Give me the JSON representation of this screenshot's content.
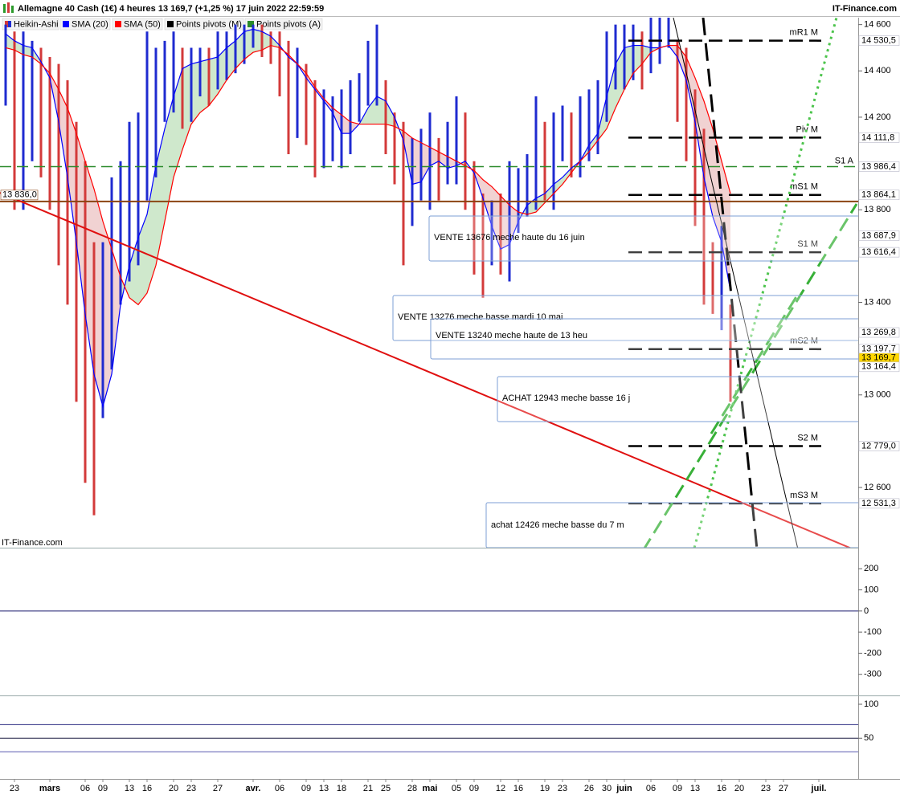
{
  "header": {
    "title": "Allemagne 40 Cash (1€) 4 heures 13 169,7 (+1,25 %) 17 juin 2022 22:59:59",
    "source": "IT-Finance.com"
  },
  "watermark": "IT-Finance.com",
  "chart_data": [
    {
      "type": "candlestick",
      "categories": [
        null,
        "23",
        null,
        null,
        null,
        "mars",
        null,
        null,
        null,
        "06",
        null,
        "09",
        null,
        null,
        "13",
        null,
        "16",
        null,
        null,
        "20",
        null,
        "23",
        null,
        null,
        "27",
        null,
        null,
        null,
        "avr.",
        null,
        null,
        "06",
        null,
        null,
        "09",
        null,
        "13",
        null,
        "18",
        null,
        null,
        "21",
        null,
        "25",
        null,
        null,
        "28",
        null,
        "mai",
        null,
        null,
        "05",
        null,
        "09",
        null,
        null,
        "12",
        null,
        "16",
        null,
        null,
        "19",
        null,
        "23",
        null,
        null,
        "26",
        null,
        "30",
        null,
        "juin",
        null,
        null,
        "06",
        null,
        null,
        "09",
        null,
        "13",
        null,
        null,
        "16",
        null,
        "20",
        null,
        null,
        "23",
        null,
        "27",
        null,
        null,
        null,
        "juil.",
        null,
        null
      ],
      "series": [
        {
          "name": "Heikin-Ashi",
          "up_color": "#1f2bd0",
          "down_color": "#d33a3a",
          "high": [
            14600,
            14570,
            14570,
            14530,
            14500,
            14460,
            14430,
            14360,
            14180,
            14010,
            13660,
            13660,
            13940,
            14010,
            14180,
            14220,
            14570,
            14500,
            14530,
            14570,
            14500,
            14500,
            14500,
            14500,
            14570,
            14570,
            14600,
            14600,
            14600,
            14600,
            14570,
            14570,
            14530,
            14500,
            14430,
            14360,
            14320,
            14290,
            14320,
            14360,
            14390,
            14530,
            14600,
            14360,
            14220,
            14180,
            14110,
            14150,
            14220,
            14110,
            14180,
            14290,
            14220,
            14010,
            13870,
            13840,
            13870,
            14010,
            13980,
            14040,
            14290,
            14180,
            14220,
            14250,
            14220,
            14290,
            14320,
            14360,
            14570,
            14600,
            14600,
            14600,
            14570,
            14630,
            14630,
            14630,
            14530,
            14500,
            14320,
            14150,
            13660,
            13730,
            13390,
            null,
            null,
            null,
            null,
            null,
            null,
            null,
            null,
            null,
            null,
            null,
            null
          ],
          "low": [
            14250,
            13800,
            13800,
            14010,
            13940,
            13800,
            13560,
            13390,
            12970,
            12620,
            12480,
            12900,
            13110,
            13390,
            13490,
            13560,
            13840,
            13940,
            14180,
            14220,
            14150,
            14180,
            14290,
            14250,
            14320,
            14360,
            14390,
            14430,
            14500,
            14460,
            14430,
            14290,
            14040,
            14110,
            14080,
            13940,
            13980,
            14010,
            13980,
            14040,
            14180,
            14250,
            14250,
            14040,
            13910,
            13560,
            13730,
            13840,
            13800,
            13840,
            13910,
            13910,
            13800,
            13520,
            13420,
            13560,
            13520,
            13490,
            13700,
            13770,
            13800,
            13840,
            13800,
            14010,
            13940,
            13940,
            14010,
            14040,
            14180,
            14320,
            14320,
            14360,
            14320,
            14390,
            14430,
            14500,
            14180,
            14010,
            13730,
            13390,
            13350,
            13280,
            12970,
            null,
            null,
            null,
            null,
            null,
            null,
            null,
            null,
            null,
            null,
            null,
            null
          ]
        },
        {
          "name": "SMA (20)",
          "color": "#0000ff",
          "values": [
            14560,
            14530,
            14510,
            14500,
            14440,
            14370,
            14180,
            13940,
            13660,
            13350,
            13090,
            12950,
            13090,
            13390,
            13560,
            13680,
            13780,
            13990,
            14150,
            14290,
            14410,
            14430,
            14440,
            14450,
            14460,
            14500,
            14530,
            14570,
            14580,
            14570,
            14550,
            14510,
            14460,
            14430,
            14370,
            14320,
            14270,
            14220,
            14130,
            14130,
            14170,
            14240,
            14290,
            14270,
            14200,
            14100,
            13910,
            13920,
            13990,
            14010,
            13980,
            13990,
            14010,
            13960,
            13850,
            13730,
            13630,
            13650,
            13750,
            13820,
            13850,
            13870,
            13910,
            13940,
            13980,
            14010,
            14080,
            14130,
            14290,
            14430,
            14500,
            14510,
            14510,
            14500,
            14500,
            14510,
            14460,
            14360,
            14180,
            13940,
            13770,
            13660,
            13450,
            null,
            null,
            null,
            null,
            null,
            null,
            null,
            null,
            null,
            null,
            null,
            null
          ]
        },
        {
          "name": "SMA (50)",
          "color": "#ff0000",
          "values": [
            14500,
            14490,
            14470,
            14460,
            14430,
            14390,
            14320,
            14240,
            14130,
            14010,
            13890,
            13750,
            13630,
            13510,
            13420,
            13390,
            13440,
            13560,
            13750,
            13940,
            14060,
            14170,
            14220,
            14250,
            14300,
            14360,
            14410,
            14450,
            14480,
            14490,
            14510,
            14500,
            14470,
            14430,
            14390,
            14330,
            14280,
            14240,
            14210,
            14180,
            14170,
            14170,
            14170,
            14170,
            14160,
            14140,
            14110,
            14090,
            14070,
            14050,
            14030,
            14010,
            13990,
            13970,
            13930,
            13900,
            13860,
            13820,
            13790,
            13780,
            13790,
            13830,
            13870,
            13910,
            13960,
            14010,
            14050,
            14100,
            14150,
            14240,
            14320,
            14390,
            14430,
            14480,
            14500,
            14510,
            14510,
            14460,
            14370,
            14270,
            14150,
            14010,
            13870,
            null,
            null,
            null,
            null,
            null,
            null,
            null,
            null,
            null,
            null,
            null,
            null
          ]
        }
      ],
      "pivots": [
        {
          "name": "Points pivots (M)",
          "color": "#000000",
          "levels": [
            {
              "label": "mR1 M",
              "value": 14530.5,
              "value_label": "14 530,5"
            },
            {
              "label": "Piv M",
              "value": 14111.8,
              "value_label": "14 111,8"
            },
            {
              "label": "mS1 M",
              "value": 13864.1,
              "value_label": "13 864,1"
            },
            {
              "label": "S1 M",
              "value": 13616.4,
              "value_label": "13 616,4"
            },
            {
              "label": "mS2 M",
              "value": 13197.7,
              "value_label": "13 197,7"
            },
            {
              "label": "S2 M",
              "value": 12779.0,
              "value_label": "12 779,0"
            },
            {
              "label": "mS3 M",
              "value": 12531.3,
              "value_label": "12 531,3"
            }
          ]
        },
        {
          "name": "Points pivots (A)",
          "color": "#2a8a2a",
          "levels": [
            {
              "label": "S1 A",
              "value": 13986.4,
              "value_label": "13 986,4"
            }
          ]
        }
      ],
      "lines": [
        {
          "value": 13836.0,
          "label": "13 836,0",
          "color": "#8b4513"
        }
      ],
      "axis_tags": [
        {
          "value": 13687.9,
          "label": "13 687,9",
          "color": "#cc0000"
        },
        {
          "value": 13269.8,
          "label": "13 269,8",
          "color": "#0000cc"
        },
        {
          "value": 13169.7,
          "label": "13 169,7",
          "color": "#000000",
          "background": "#ffd700"
        },
        {
          "value": 13164.4,
          "label": "13 164,4",
          "color": "#000000"
        }
      ],
      "annotations": [
        {
          "text": "VENTE 13676 meche haute du 16 juin",
          "color": "#1e8a1e"
        },
        {
          "text": "VENTE 13276 meche basse mardi 10 mai",
          "color": "#000000"
        },
        {
          "text": "VENTE 13240 meche haute de 13 heu",
          "color": "#000000"
        },
        {
          "text": "ACHAT 12943 meche basse 16 j",
          "color": "#1e8a1e"
        },
        {
          "text": "achat 12426 meche basse du 7 m",
          "color": "#1e8a1e"
        }
      ],
      "ylim": [
        12340,
        14630
      ],
      "yticks": [
        {
          "value": 14600,
          "label": "14 600"
        },
        {
          "value": 14400,
          "label": "14 400"
        },
        {
          "value": 14200,
          "label": "14 200"
        },
        {
          "value": 13800,
          "label": "13 800"
        },
        {
          "value": 13400,
          "label": "13 400"
        },
        {
          "value": 13000,
          "label": "13 000"
        },
        {
          "value": 12600,
          "label": "12 600"
        }
      ]
    },
    {
      "type": "indicator",
      "ylim": [
        -400,
        300
      ],
      "yticks": [
        200,
        100,
        0,
        -100,
        -200,
        -300
      ],
      "reference_lines": [
        0
      ],
      "reference_colors": [
        "#1a1a6e"
      ]
    },
    {
      "type": "indicator",
      "ylim": [
        -10,
        113
      ],
      "yticks": [
        100,
        50
      ],
      "reference_lines": [
        70,
        50,
        30
      ],
      "reference_colors": [
        "#2a2a80",
        "#1a1a40",
        "#5a5ab0"
      ]
    }
  ]
}
